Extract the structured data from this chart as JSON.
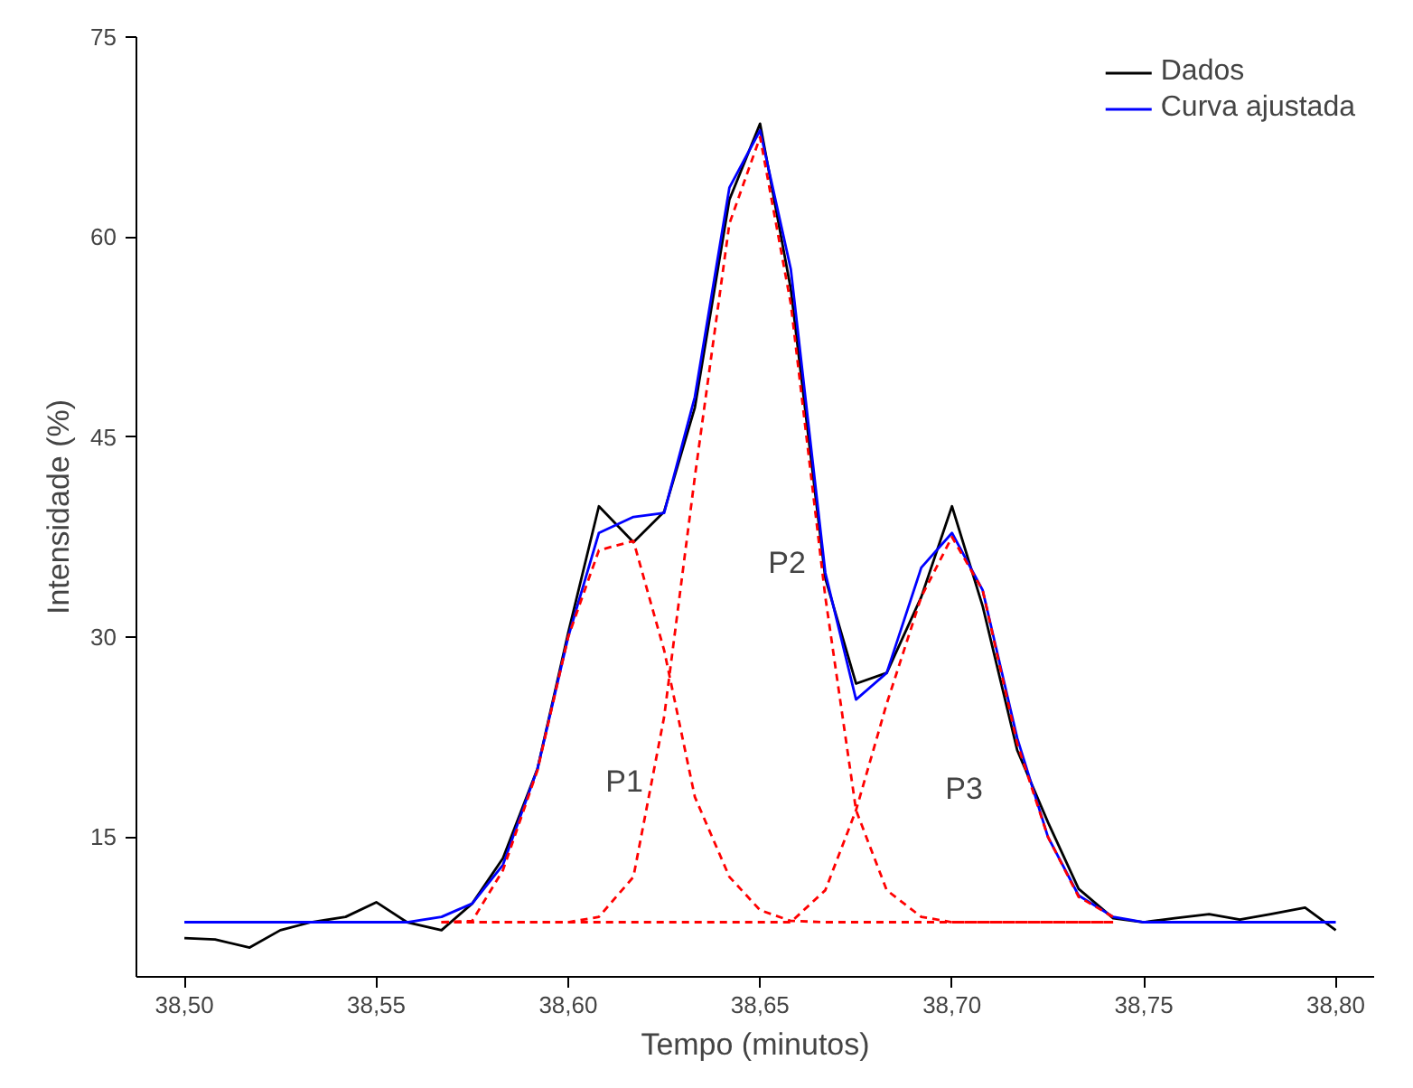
{
  "chart_data": {
    "type": "line",
    "xlabel": "Tempo (minutos)",
    "ylabel": "Intensidade (%)",
    "xlim": [
      38.4875,
      38.81
    ],
    "ylim": [
      4.5,
      75
    ],
    "xticks": [
      {
        "value": 38.5,
        "label": "38,50"
      },
      {
        "value": 38.55,
        "label": "38,55"
      },
      {
        "value": 38.6,
        "label": "38,60"
      },
      {
        "value": 38.65,
        "label": "38,65"
      },
      {
        "value": 38.7,
        "label": "38,70"
      },
      {
        "value": 38.75,
        "label": "38,75"
      },
      {
        "value": 38.8,
        "label": "38,80"
      }
    ],
    "yticks": [
      15,
      30,
      45,
      60,
      75
    ],
    "grid": false,
    "legend": "top right",
    "marker": "none",
    "series": [
      {
        "name": "Dados",
        "color": "#000000",
        "x": [
          38.5,
          38.508,
          38.517,
          38.525,
          38.533,
          38.542,
          38.55,
          38.558,
          38.567,
          38.575,
          38.583,
          38.592,
          38.6,
          38.608,
          38.617,
          38.625,
          38.633,
          38.642,
          38.65,
          38.658,
          38.667,
          38.675,
          38.683,
          38.692,
          38.7,
          38.708,
          38.717,
          38.725,
          38.733,
          38.742,
          38.75,
          38.758,
          38.767,
          38.775,
          38.783,
          38.792,
          38.8
        ],
        "values": [
          7.4,
          7.3,
          6.7,
          8.0,
          8.6,
          9.0,
          10.1,
          8.6,
          8.0,
          10.0,
          13.4,
          20.1,
          30.3,
          39.8,
          37.1,
          39.4,
          47.2,
          62.8,
          68.5,
          56.1,
          34.4,
          26.5,
          27.3,
          33.0,
          39.8,
          32.3,
          21.5,
          16.1,
          11.1,
          8.9,
          8.6,
          8.9,
          9.2,
          8.8,
          9.2,
          9.7,
          8.0
        ]
      },
      {
        "name": "Curva ajustada",
        "color": "#0000ff",
        "x": [
          38.5,
          38.508,
          38.517,
          38.525,
          38.533,
          38.542,
          38.55,
          38.558,
          38.567,
          38.575,
          38.583,
          38.592,
          38.6,
          38.608,
          38.617,
          38.625,
          38.633,
          38.642,
          38.65,
          38.658,
          38.667,
          38.675,
          38.683,
          38.692,
          38.7,
          38.708,
          38.717,
          38.725,
          38.733,
          38.742,
          38.75,
          38.758,
          38.767,
          38.775,
          38.783,
          38.792,
          38.8
        ],
        "values": [
          8.6,
          8.6,
          8.6,
          8.6,
          8.6,
          8.6,
          8.6,
          8.6,
          9.0,
          10.0,
          12.9,
          20.1,
          30.0,
          37.8,
          39.0,
          39.3,
          48.0,
          63.7,
          68.0,
          57.6,
          34.8,
          25.3,
          27.3,
          35.2,
          37.8,
          33.5,
          22.4,
          15.0,
          10.6,
          9.0,
          8.6,
          8.6,
          8.6,
          8.6,
          8.6,
          8.6,
          8.6
        ]
      },
      {
        "color": "#ff0000",
        "line_style": "dashed",
        "x": [
          38.567,
          38.575,
          38.583,
          38.592,
          38.6,
          38.608,
          38.617,
          38.625,
          38.633,
          38.642,
          38.65,
          38.658,
          38.667,
          38.675,
          38.683,
          38.692,
          38.7,
          38.708,
          38.717,
          38.725,
          38.733,
          38.742
        ],
        "values": [
          8.6,
          8.7,
          12.5,
          20.0,
          30.0,
          36.5,
          37.2,
          29.0,
          18.0,
          12.0,
          9.5,
          8.7,
          8.6,
          8.6,
          8.6,
          8.6,
          8.6,
          8.6,
          8.6,
          8.6,
          8.6,
          8.6
        ]
      },
      {
        "color": "#ff0000",
        "line_style": "dashed",
        "x": [
          38.567,
          38.575,
          38.583,
          38.592,
          38.6,
          38.608,
          38.617,
          38.625,
          38.633,
          38.642,
          38.65,
          38.658,
          38.667,
          38.675,
          38.683,
          38.692,
          38.7,
          38.708,
          38.717,
          38.725,
          38.733,
          38.742
        ],
        "values": [
          8.6,
          8.6,
          8.6,
          8.6,
          8.6,
          9.0,
          12.0,
          24.0,
          42.0,
          61.0,
          67.5,
          55.0,
          33.0,
          17.0,
          11.0,
          9.0,
          8.6,
          8.6,
          8.6,
          8.6,
          8.6,
          8.6
        ]
      },
      {
        "color": "#ff0000",
        "line_style": "dashed",
        "x": [
          38.567,
          38.575,
          38.583,
          38.592,
          38.6,
          38.608,
          38.617,
          38.625,
          38.633,
          38.642,
          38.65,
          38.658,
          38.667,
          38.675,
          38.683,
          38.692,
          38.7,
          38.708,
          38.717,
          38.725,
          38.733,
          38.742
        ],
        "values": [
          8.6,
          8.6,
          8.6,
          8.6,
          8.6,
          8.6,
          8.6,
          8.6,
          8.6,
          8.6,
          8.6,
          8.6,
          11.0,
          17.0,
          25.0,
          33.0,
          37.5,
          33.5,
          22.0,
          15.0,
          10.5,
          9.0
        ]
      }
    ],
    "annotations": [
      "P1",
      "P2",
      "P3"
    ]
  }
}
